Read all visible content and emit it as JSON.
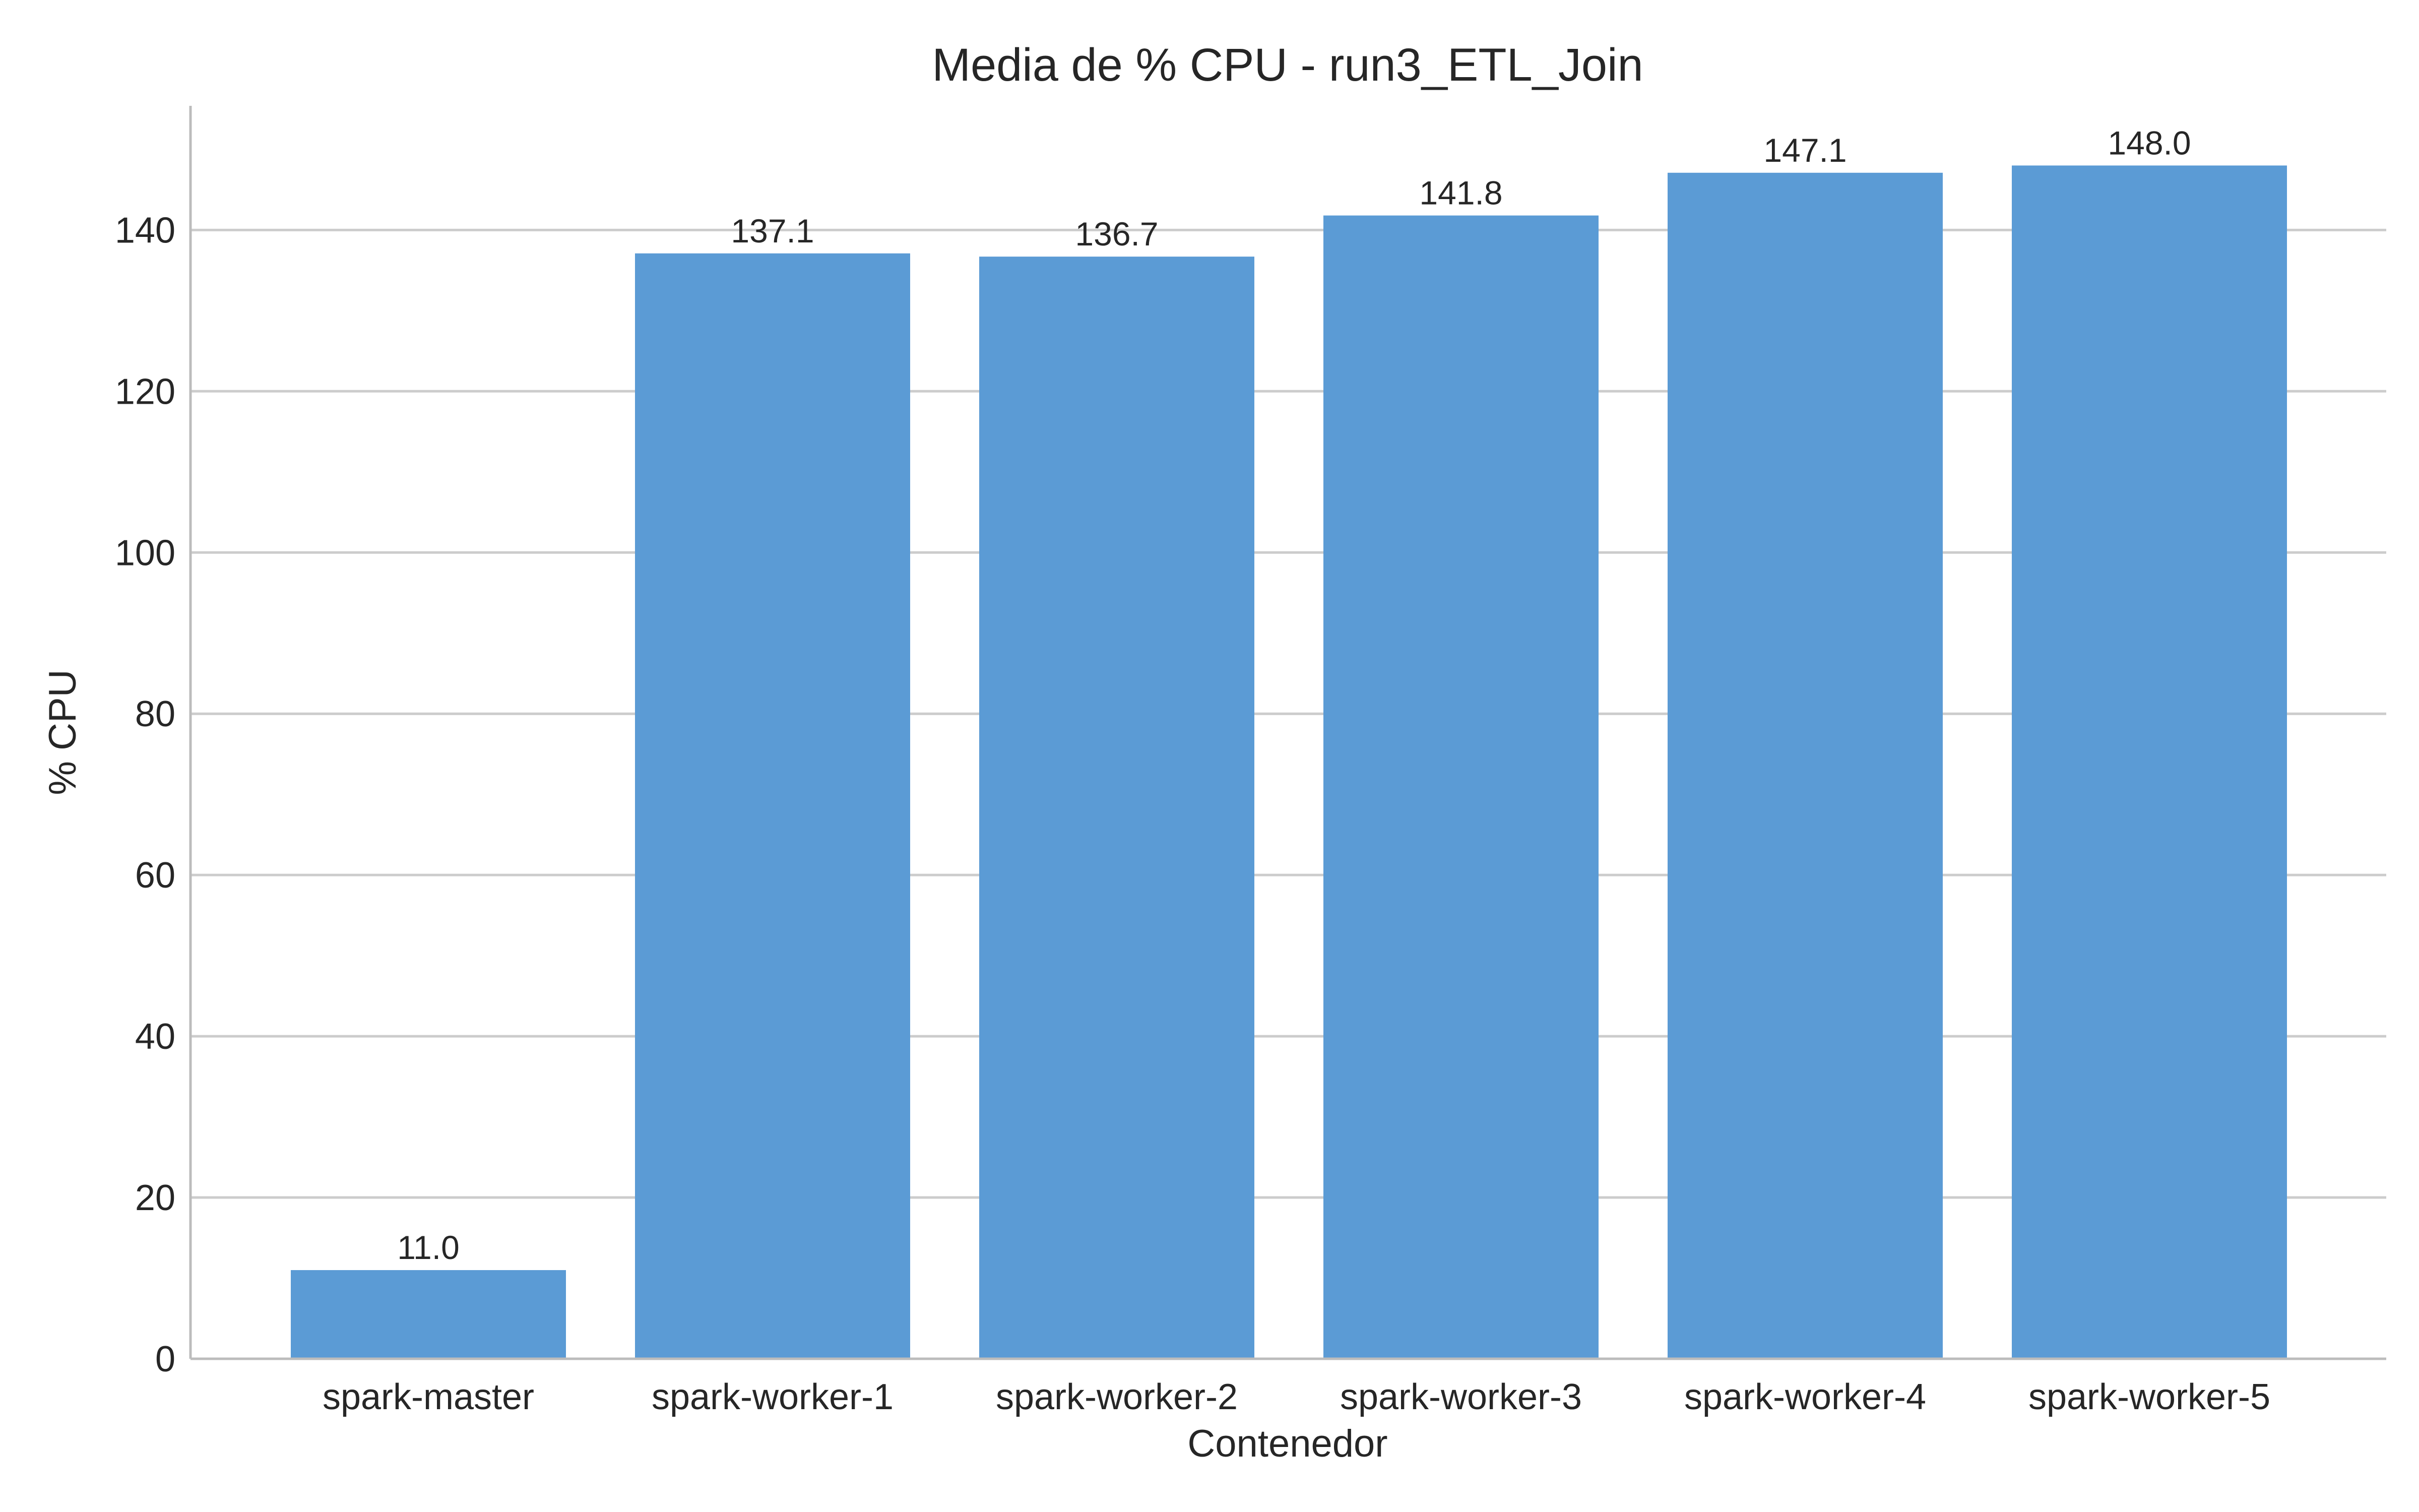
{
  "chart_data": {
    "type": "bar",
    "title": "Media de % CPU - run3_ETL_Join",
    "xlabel": "Contenedor",
    "ylabel": "% CPU",
    "categories": [
      "spark-master",
      "spark-worker-1",
      "spark-worker-2",
      "spark-worker-3",
      "spark-worker-4",
      "spark-worker-5"
    ],
    "values": [
      11.0,
      137.1,
      136.7,
      141.8,
      147.1,
      148.0
    ],
    "data_labels": [
      "11.0",
      "137.1",
      "136.7",
      "141.8",
      "147.1",
      "148.0"
    ],
    "yticks": [
      0,
      20,
      40,
      60,
      80,
      100,
      120,
      140
    ],
    "ylim": [
      0,
      155.4
    ],
    "grid": "horizontal",
    "bar_color": "#5b9bd5"
  }
}
